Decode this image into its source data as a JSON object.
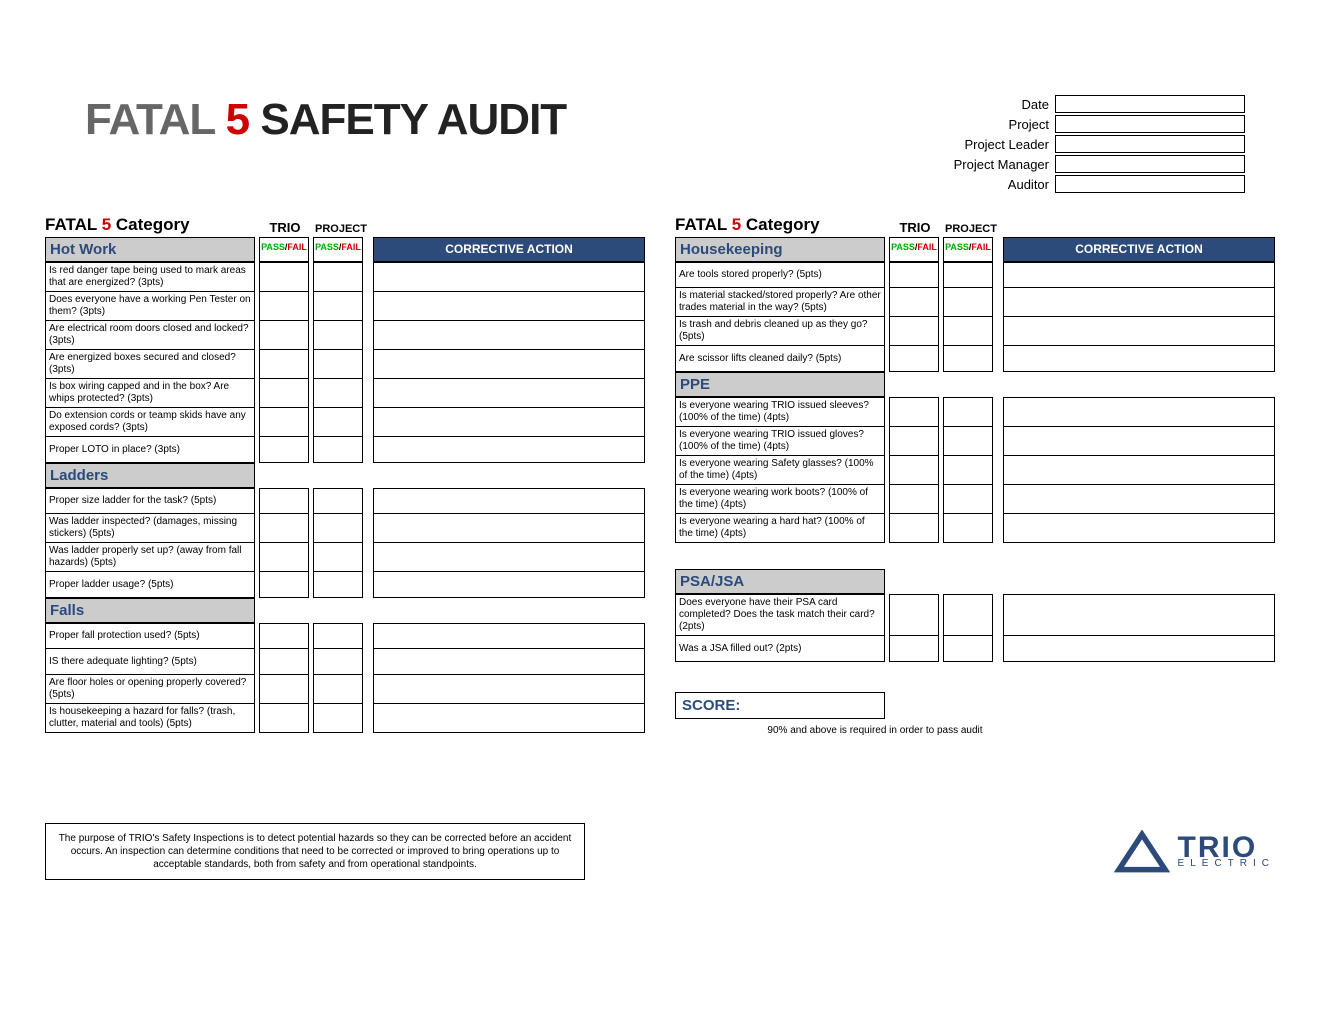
{
  "title": {
    "prefix": "FATAL",
    "five": "5",
    "suffix": "SAFETY AUDIT"
  },
  "meta": {
    "date_label": "Date",
    "project_label": "Project",
    "leader_label": "Project Leader",
    "manager_label": "Project Manager",
    "auditor_label": "Auditor"
  },
  "headers": {
    "category": "Category",
    "fatal": "FATAL",
    "five": "5",
    "trio": "TRIO",
    "project": "PROJECT",
    "pass": "PASS",
    "fail": "FAIL",
    "corrective": "CORRECTIVE ACTION"
  },
  "colors": {
    "accent": "#2c4a7a",
    "red": "#c00000",
    "green": "#00a000",
    "section_bg": "#cccccc",
    "header_bg": "#2c4a7a"
  },
  "left": {
    "sections": [
      {
        "title": "Hot Work",
        "items": [
          "Is red danger tape being used to mark areas that are energized? (3pts)",
          "Does everyone have a working Pen Tester on them? (3pts)",
          "Are electrical room doors closed and locked? (3pts)",
          "Are energized boxes secured and closed? (3pts)",
          "Is box wiring capped and in the box? Are whips protected? (3pts)",
          "Do extension cords or teamp skids have any exposed cords? (3pts)",
          "Proper LOTO in place? (3pts)"
        ]
      },
      {
        "title": "Ladders",
        "items": [
          "Proper size ladder for the task? (5pts)",
          "Was ladder inspected? (damages, missing stickers) (5pts)",
          "Was ladder properly set up? (away from fall hazards) (5pts)",
          "Proper ladder usage?  (5pts)"
        ]
      },
      {
        "title": "Falls",
        "items": [
          "Proper fall protection used? (5pts)",
          "IS there adequate lighting? (5pts)",
          "Are floor holes or opening properly covered? (5pts)",
          "Is housekeeping a hazard for falls? (trash, clutter, material and tools) (5pts)"
        ]
      }
    ]
  },
  "right": {
    "sections": [
      {
        "title": "Housekeeping",
        "items": [
          "Are tools stored properly? (5pts)",
          "Is material stacked/stored properly? Are other trades material in the way? (5pts)",
          "Is trash and debris cleaned up as they go? (5pts)",
          "Are scissor lifts cleaned daily? (5pts)"
        ]
      },
      {
        "title": "PPE",
        "items": [
          "Is everyone wearing TRIO issued sleeves? (100% of the time) (4pts)",
          "Is everyone wearing TRIO issued gloves? (100% of the time) (4pts)",
          "Is everyone wearing Safety glasses? (100% of the time) (4pts)",
          "Is everyone wearing work boots? (100% of the time) (4pts)",
          "Is everyone wearing a hard hat? (100% of the time) (4pts)"
        ]
      },
      {
        "title": "PSA/JSA",
        "gap_before": true,
        "items": [
          "Does everyone have their PSA card completed? Does the task match their card? (2pts)",
          "Was a JSA filled out? (2pts)"
        ]
      }
    ]
  },
  "score": {
    "label": "SCORE:",
    "note": "90% and above is required in order to pass audit"
  },
  "purpose": "The purpose of TRIO's Safety Inspections is to detect potential hazards so they can be corrected before an accident occurs. An inspection can determine conditions that need to be corrected or improved to bring operations up to acceptable standards, both from safety and from operational standpoints.",
  "logo": {
    "name": "TRIO",
    "sub": "ELECTRIC"
  }
}
